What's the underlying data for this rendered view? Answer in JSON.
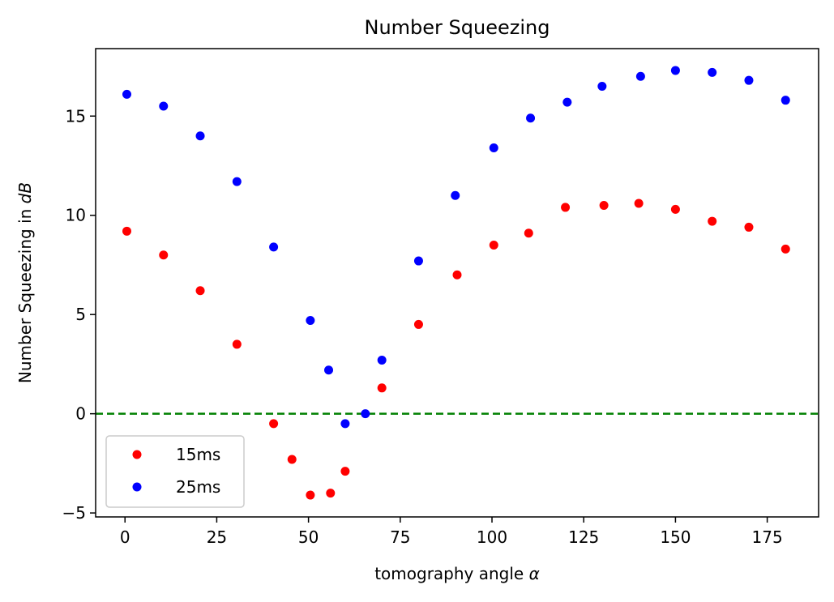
{
  "chart_data": {
    "type": "scatter",
    "title": "Number Squeezing",
    "xlabel": "tomography angle",
    "xlabel_symbol": "α",
    "ylabel": "Number Squeezing in",
    "ylabel_symbol": "dB",
    "xlim": [
      -8,
      189
    ],
    "ylim": [
      -5.2,
      18.4
    ],
    "xticks": [
      0,
      25,
      50,
      75,
      100,
      125,
      150,
      175
    ],
    "xtick_labels": [
      "0",
      "25",
      "50",
      "75",
      "100",
      "125",
      "150",
      "175"
    ],
    "yticks": [
      -5,
      0,
      5,
      10,
      15
    ],
    "ytick_labels": [
      "−5",
      "0",
      "5",
      "10",
      "15"
    ],
    "grid": false,
    "legend_position": "lower-left",
    "reference_line": {
      "y": 0,
      "color": "#008000",
      "style": "dashed"
    },
    "series": [
      {
        "name": "15ms",
        "color": "#ff0000",
        "x": [
          0.5,
          10.5,
          20.5,
          30.5,
          40.5,
          45.5,
          50.5,
          56,
          60,
          70,
          80,
          90.5,
          100.5,
          110,
          120,
          130.5,
          140,
          150,
          160,
          170,
          180
        ],
        "y": [
          9.2,
          8.0,
          6.2,
          3.5,
          -0.5,
          -2.3,
          -4.1,
          -4.0,
          -2.9,
          1.3,
          4.5,
          7.0,
          8.5,
          9.1,
          10.4,
          10.5,
          10.6,
          10.3,
          9.7,
          9.4,
          8.3
        ]
      },
      {
        "name": "25ms",
        "color": "#0000ff",
        "x": [
          0.5,
          10.5,
          20.5,
          30.5,
          40.5,
          50.5,
          55.5,
          60,
          65.5,
          70,
          80,
          90,
          100.5,
          110.5,
          120.5,
          130,
          140.5,
          150,
          160,
          170,
          180
        ],
        "y": [
          16.1,
          15.5,
          14.0,
          11.7,
          8.4,
          4.7,
          2.2,
          -0.5,
          0.0,
          2.7,
          7.7,
          11.0,
          13.4,
          14.9,
          15.7,
          16.5,
          17.0,
          17.3,
          17.2,
          16.8,
          15.8
        ]
      }
    ]
  }
}
